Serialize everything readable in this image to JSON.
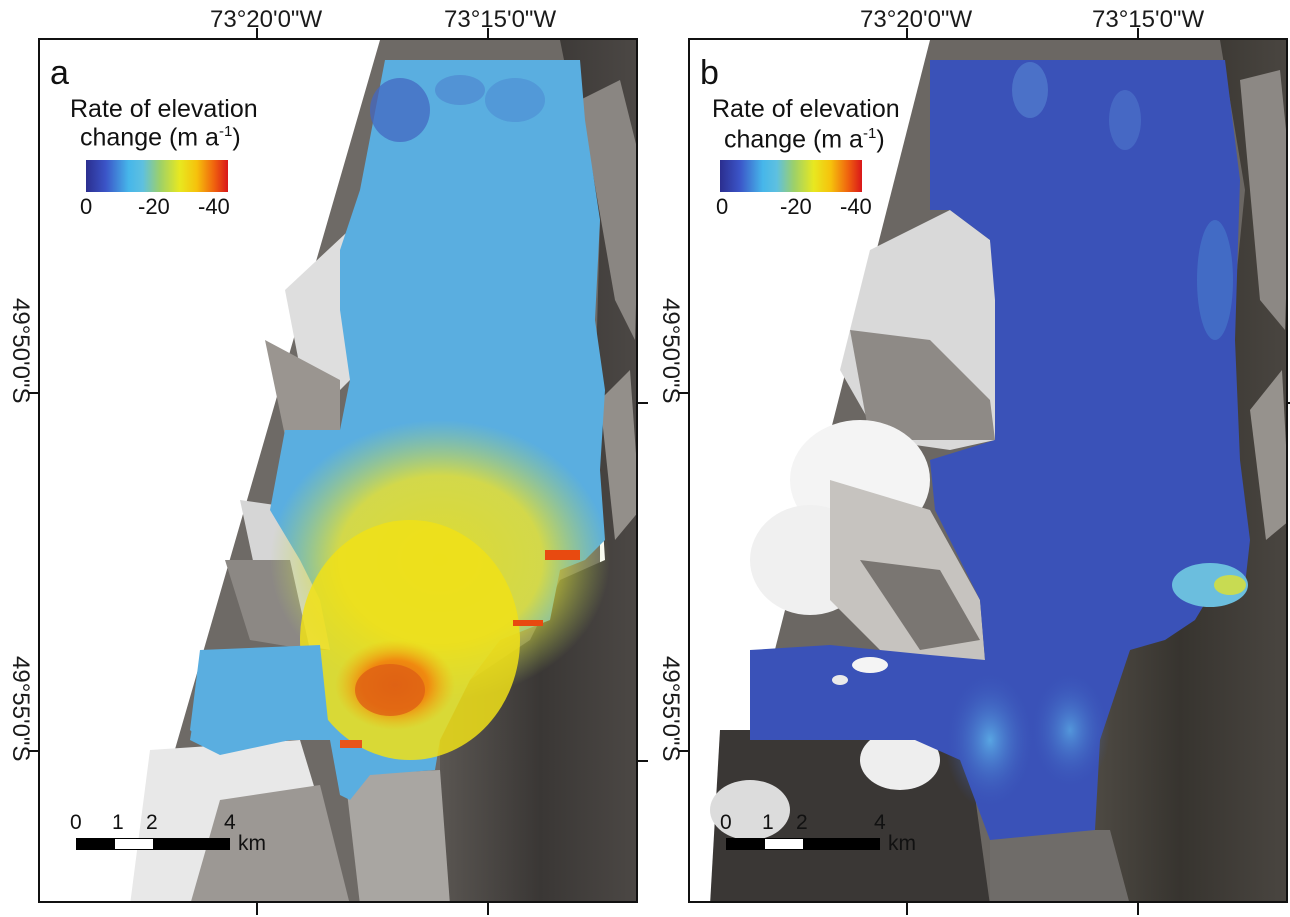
{
  "top_longitude_labels": [
    "73°20'0\"W",
    "73°15'0\"W"
  ],
  "latitude_labels": [
    "49°50'0\"S",
    "49°55'0\"S"
  ],
  "legend": {
    "title_line1": "Rate of elevation",
    "title_line2_prefix": "change (m a",
    "title_sup": "-1",
    "title_suffix": ")",
    "ticks": [
      "0",
      "-20",
      "-40"
    ],
    "colormap": [
      "#2b2e8f",
      "#3b55c8",
      "#46b6ea",
      "#9cd06a",
      "#e8e820",
      "#f6c20c",
      "#f0640e",
      "#d9161a"
    ]
  },
  "scale_bar": {
    "ticks": [
      "0",
      "1",
      "2",
      "4"
    ],
    "unit": "km"
  },
  "panels": [
    {
      "label": "a"
    },
    {
      "label": "b"
    }
  ],
  "colors": {
    "rock_dark": "#3a3735",
    "rock_mid": "#6e6a66",
    "snow": "#eeeeee",
    "ice_light_blue": "#5aaee0",
    "ice_deep_blue": "#3a52b8",
    "yellow": "#f0e020",
    "orange": "#e8731a"
  }
}
